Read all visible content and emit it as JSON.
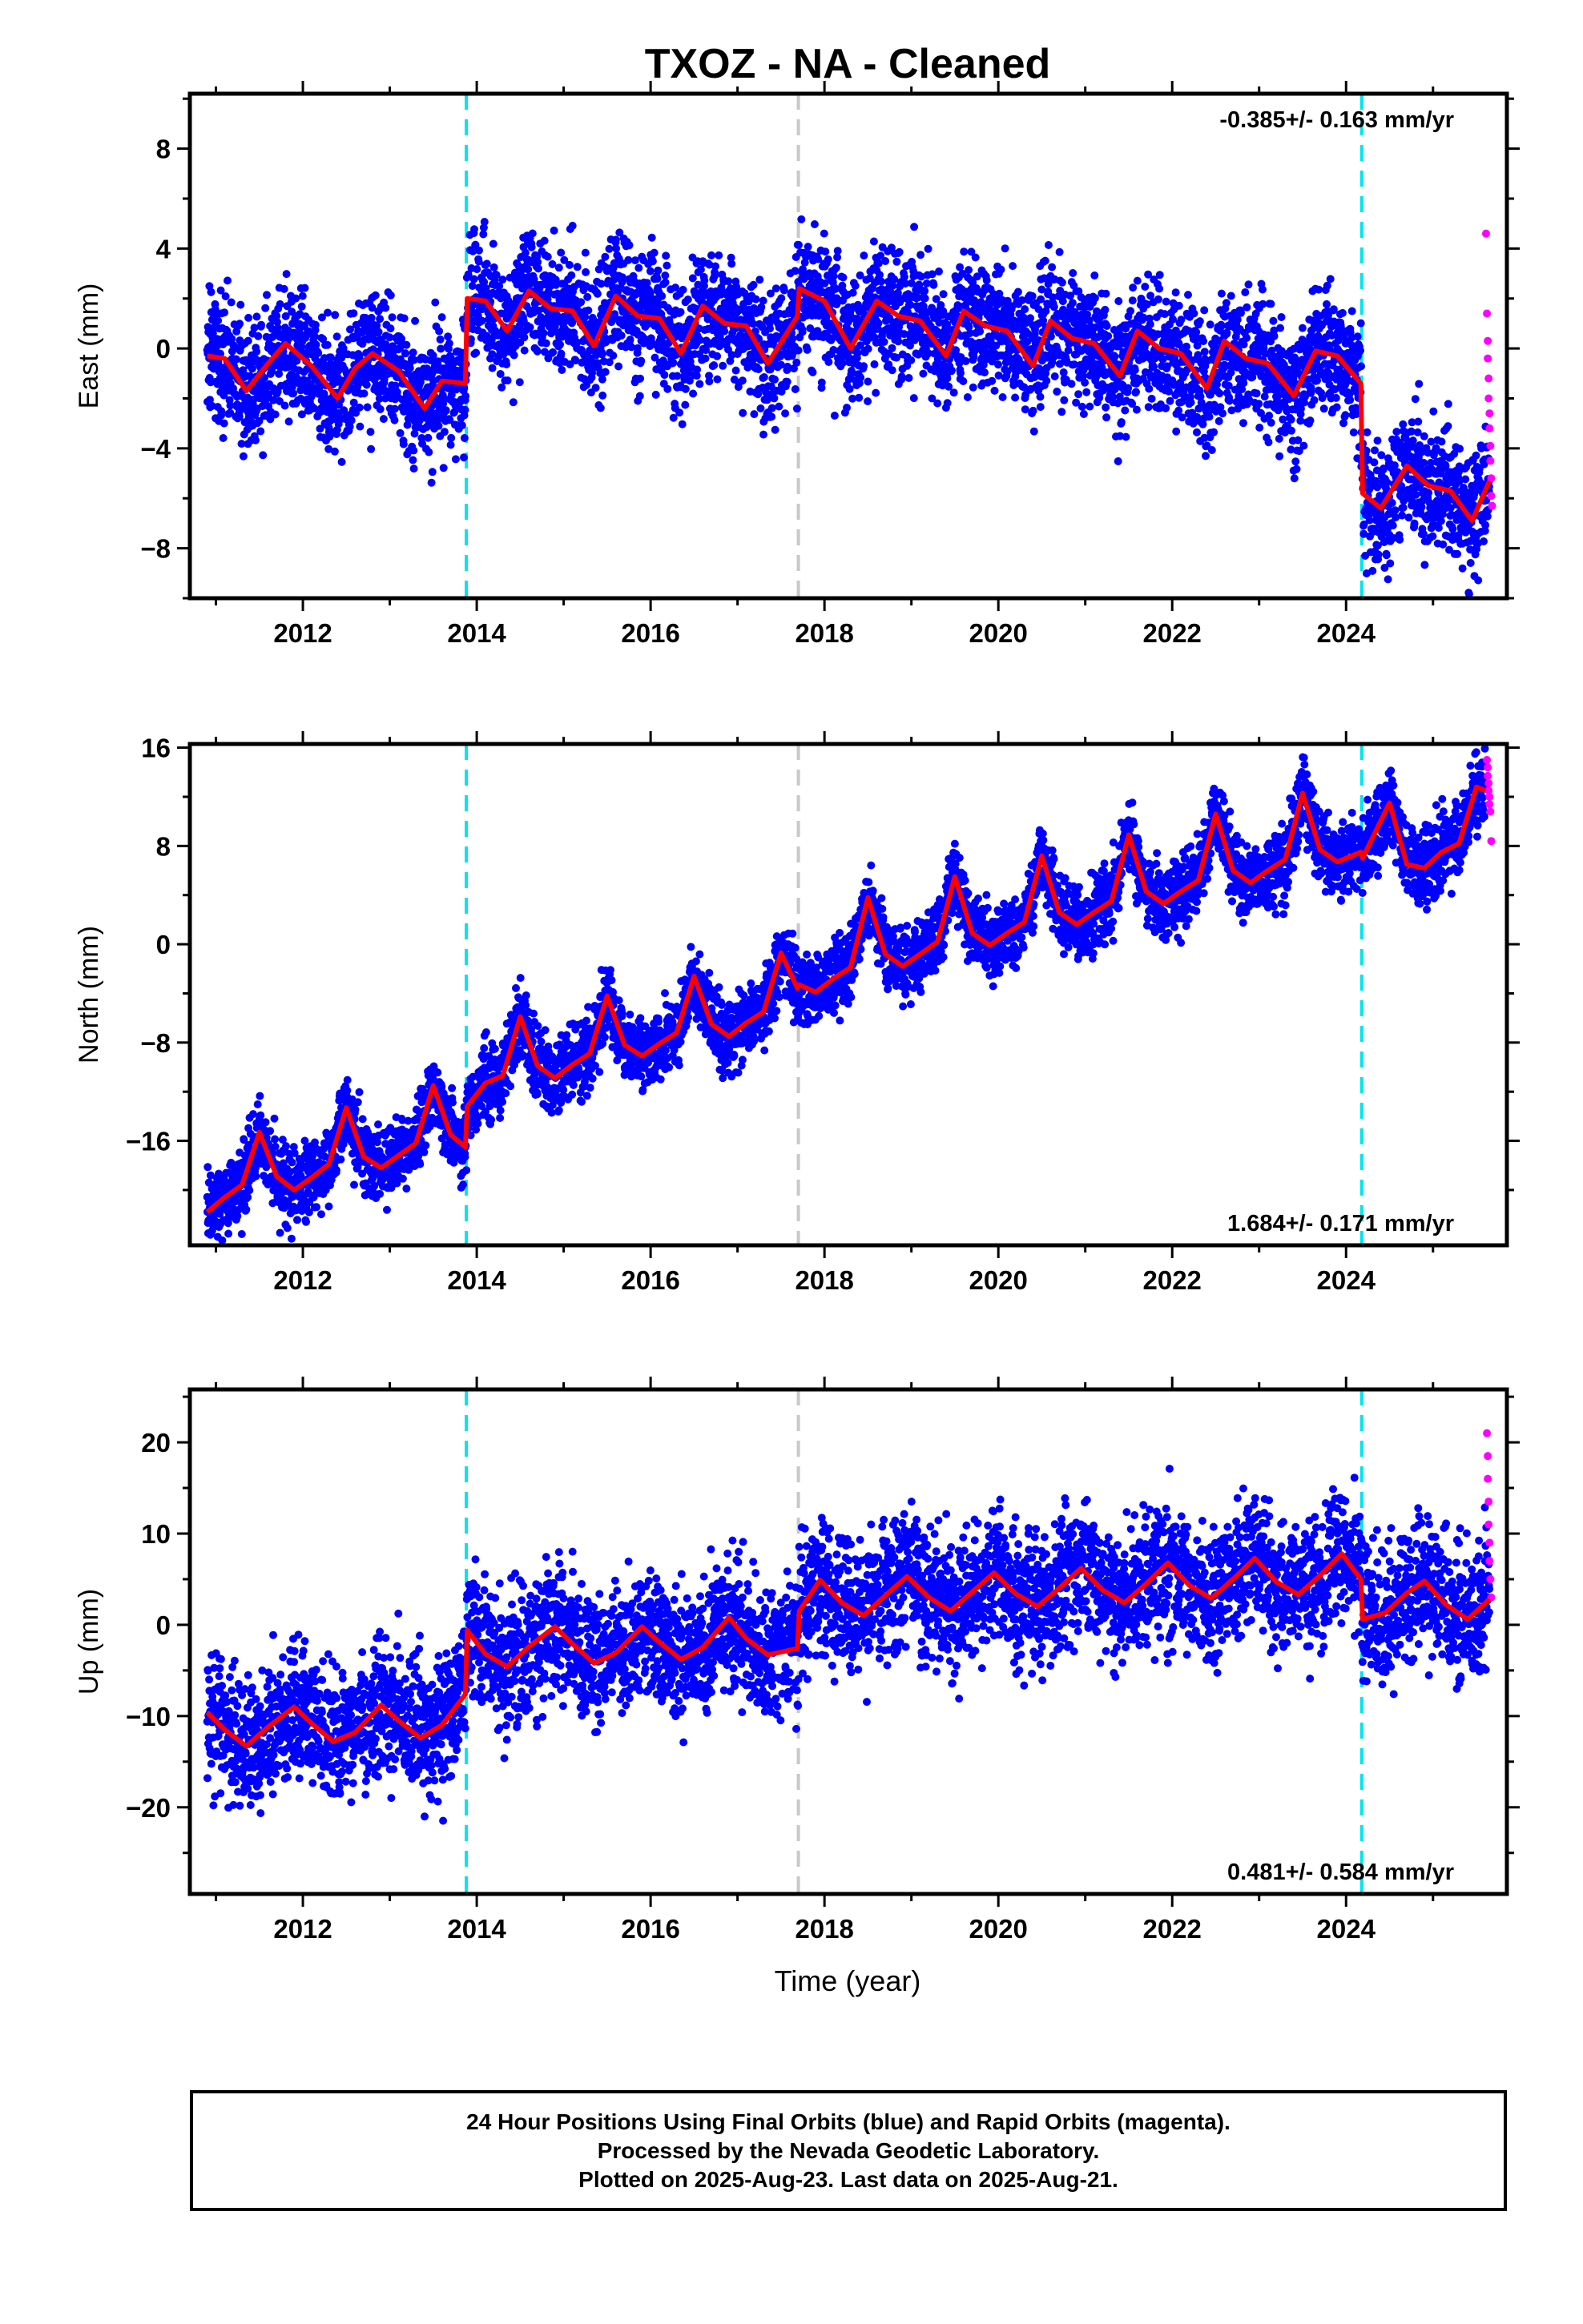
{
  "title": "TXOZ  - NA - Cleaned",
  "xlabel": "Time (year)",
  "footer": {
    "line1": "24 Hour Positions Using Final Orbits (blue) and Rapid Orbits (magenta).",
    "line2": "Processed by the Nevada Geodetic Laboratory.",
    "line3": "Plotted on 2025-Aug-23. Last data on 2025-Aug-21."
  },
  "colors": {
    "final_orbits": "#0000ff",
    "rapid_orbits": "#ff00ff",
    "model": "#ff0000",
    "antenna_change": "#00e5ee",
    "equipment_change": "#c8c8c8"
  },
  "chart_data": [
    {
      "type": "scatter",
      "component": "east",
      "ylabel": "East (mm)",
      "xlim": [
        2010.7,
        2025.85
      ],
      "ylim": [
        -10,
        10.2
      ],
      "xticks": [
        2012,
        2014,
        2016,
        2018,
        2020,
        2022,
        2024
      ],
      "yticks": [
        -8,
        -4,
        0,
        4,
        8
      ],
      "rate_label": "-0.385+/- 0.163 mm/yr",
      "rate_position": "top-right",
      "breaks_cyan": [
        2013.88,
        2024.18
      ],
      "breaks_gray": [
        2017.7
      ],
      "model": [
        [
          2010.9,
          -0.3
        ],
        [
          2011.1,
          -0.4
        ],
        [
          2011.35,
          -1.7
        ],
        [
          2011.6,
          -0.6
        ],
        [
          2011.8,
          0.2
        ],
        [
          2012.1,
          -0.7
        ],
        [
          2012.4,
          -2.0
        ],
        [
          2012.6,
          -0.8
        ],
        [
          2012.8,
          -0.2
        ],
        [
          2013.1,
          -0.9
        ],
        [
          2013.4,
          -2.4
        ],
        [
          2013.6,
          -1.3
        ],
        [
          2013.87,
          -1.4
        ],
        [
          2013.89,
          2.0
        ],
        [
          2014.1,
          1.9
        ],
        [
          2014.35,
          0.7
        ],
        [
          2014.6,
          2.3
        ],
        [
          2014.85,
          1.6
        ],
        [
          2015.1,
          1.5
        ],
        [
          2015.35,
          0.1
        ],
        [
          2015.6,
          2.1
        ],
        [
          2015.85,
          1.3
        ],
        [
          2016.1,
          1.2
        ],
        [
          2016.35,
          -0.2
        ],
        [
          2016.6,
          1.7
        ],
        [
          2016.85,
          1.0
        ],
        [
          2017.1,
          0.9
        ],
        [
          2017.35,
          -0.6
        ],
        [
          2017.69,
          1.3
        ],
        [
          2017.71,
          2.4
        ],
        [
          2018.0,
          1.9
        ],
        [
          2018.3,
          0.0
        ],
        [
          2018.6,
          1.9
        ],
        [
          2018.85,
          1.3
        ],
        [
          2019.1,
          1.1
        ],
        [
          2019.4,
          -0.3
        ],
        [
          2019.6,
          1.5
        ],
        [
          2019.85,
          0.9
        ],
        [
          2020.1,
          0.7
        ],
        [
          2020.4,
          -0.7
        ],
        [
          2020.6,
          1.1
        ],
        [
          2020.85,
          0.4
        ],
        [
          2021.1,
          0.2
        ],
        [
          2021.4,
          -1.1
        ],
        [
          2021.6,
          0.7
        ],
        [
          2021.85,
          0.0
        ],
        [
          2022.1,
          -0.2
        ],
        [
          2022.4,
          -1.6
        ],
        [
          2022.6,
          0.3
        ],
        [
          2022.85,
          -0.4
        ],
        [
          2023.1,
          -0.6
        ],
        [
          2023.4,
          -1.9
        ],
        [
          2023.65,
          -0.1
        ],
        [
          2023.9,
          -0.3
        ],
        [
          2024.17,
          -1.4
        ],
        [
          2024.19,
          -5.8
        ],
        [
          2024.4,
          -6.4
        ],
        [
          2024.7,
          -4.7
        ],
        [
          2024.95,
          -5.5
        ],
        [
          2025.2,
          -5.7
        ],
        [
          2025.45,
          -6.9
        ],
        [
          2025.65,
          -5.3
        ]
      ],
      "rapid": [
        [
          2025.61,
          4.6
        ],
        [
          2025.62,
          1.4
        ],
        [
          2025.63,
          0.3
        ],
        [
          2025.63,
          -0.4
        ],
        [
          2025.64,
          -1.2
        ],
        [
          2025.64,
          -2.0
        ],
        [
          2025.65,
          -2.6
        ],
        [
          2025.65,
          -3.2
        ],
        [
          2025.66,
          -3.9
        ],
        [
          2025.66,
          -4.5
        ],
        [
          2025.67,
          -5.2
        ],
        [
          2025.67,
          -5.9
        ],
        [
          2025.68,
          -6.3
        ]
      ]
    },
    {
      "type": "scatter",
      "component": "north",
      "ylabel": "North (mm)",
      "xlim": [
        2010.7,
        2025.85
      ],
      "ylim": [
        -24.5,
        16.3
      ],
      "xticks": [
        2012,
        2014,
        2016,
        2018,
        2020,
        2022,
        2024
      ],
      "yticks": [
        -16,
        -8,
        0,
        8,
        16
      ],
      "rate_label": "1.684+/- 0.171 mm/yr",
      "rate_position": "bottom-right",
      "breaks_cyan": [
        2013.88,
        2024.18
      ],
      "breaks_gray": [
        2017.7
      ],
      "model": [
        [
          2010.9,
          -21.8
        ],
        [
          2011.1,
          -20.6
        ],
        [
          2011.3,
          -19.6
        ],
        [
          2011.5,
          -15.3
        ],
        [
          2011.7,
          -18.9
        ],
        [
          2011.9,
          -20.0
        ],
        [
          2012.1,
          -19.0
        ],
        [
          2012.3,
          -17.9
        ],
        [
          2012.5,
          -13.3
        ],
        [
          2012.7,
          -17.3
        ],
        [
          2012.9,
          -18.2
        ],
        [
          2013.1,
          -17.2
        ],
        [
          2013.3,
          -16.2
        ],
        [
          2013.5,
          -11.5
        ],
        [
          2013.7,
          -15.5
        ],
        [
          2013.87,
          -16.5
        ],
        [
          2013.89,
          -13.2
        ],
        [
          2014.1,
          -11.3
        ],
        [
          2014.3,
          -10.7
        ],
        [
          2014.5,
          -5.9
        ],
        [
          2014.7,
          -9.9
        ],
        [
          2014.9,
          -10.9
        ],
        [
          2015.1,
          -9.8
        ],
        [
          2015.3,
          -8.9
        ],
        [
          2015.5,
          -4.2
        ],
        [
          2015.7,
          -8.2
        ],
        [
          2015.9,
          -9.1
        ],
        [
          2016.1,
          -8.1
        ],
        [
          2016.3,
          -7.2
        ],
        [
          2016.5,
          -2.6
        ],
        [
          2016.7,
          -6.5
        ],
        [
          2016.9,
          -7.5
        ],
        [
          2017.1,
          -6.4
        ],
        [
          2017.3,
          -5.5
        ],
        [
          2017.5,
          -0.7
        ],
        [
          2017.69,
          -3.6
        ],
        [
          2017.71,
          -3.3
        ],
        [
          2017.9,
          -3.9
        ],
        [
          2018.1,
          -2.8
        ],
        [
          2018.3,
          -1.9
        ],
        [
          2018.5,
          3.8
        ],
        [
          2018.7,
          -0.8
        ],
        [
          2018.9,
          -1.8
        ],
        [
          2019.1,
          -0.8
        ],
        [
          2019.3,
          0.2
        ],
        [
          2019.5,
          5.5
        ],
        [
          2019.7,
          0.9
        ],
        [
          2019.9,
          -0.1
        ],
        [
          2020.1,
          0.9
        ],
        [
          2020.3,
          1.8
        ],
        [
          2020.5,
          7.2
        ],
        [
          2020.7,
          2.6
        ],
        [
          2020.9,
          1.6
        ],
        [
          2021.1,
          2.6
        ],
        [
          2021.3,
          3.5
        ],
        [
          2021.5,
          8.9
        ],
        [
          2021.7,
          4.3
        ],
        [
          2021.9,
          3.3
        ],
        [
          2022.1,
          4.3
        ],
        [
          2022.3,
          5.2
        ],
        [
          2022.5,
          10.6
        ],
        [
          2022.7,
          6.0
        ],
        [
          2022.9,
          5.0
        ],
        [
          2023.1,
          6.0
        ],
        [
          2023.3,
          6.9
        ],
        [
          2023.5,
          12.3
        ],
        [
          2023.7,
          7.7
        ],
        [
          2023.9,
          6.7
        ],
        [
          2024.17,
          7.5
        ],
        [
          2024.19,
          7.0
        ],
        [
          2024.5,
          11.5
        ],
        [
          2024.7,
          6.5
        ],
        [
          2024.9,
          6.2
        ],
        [
          2025.1,
          7.5
        ],
        [
          2025.3,
          8.2
        ],
        [
          2025.5,
          12.8
        ],
        [
          2025.6,
          12.5
        ]
      ],
      "rapid": [
        [
          2025.62,
          15.0
        ],
        [
          2025.63,
          14.4
        ],
        [
          2025.63,
          13.7
        ],
        [
          2025.64,
          13.1
        ],
        [
          2025.64,
          12.5
        ],
        [
          2025.65,
          12.0
        ],
        [
          2025.65,
          11.4
        ],
        [
          2025.66,
          10.8
        ],
        [
          2025.67,
          8.4
        ]
      ]
    },
    {
      "type": "scatter",
      "component": "up",
      "ylabel": "Up (mm)",
      "xlim": [
        2010.7,
        2025.85
      ],
      "ylim": [
        -29.5,
        25.8
      ],
      "xticks": [
        2012,
        2014,
        2016,
        2018,
        2020,
        2022,
        2024
      ],
      "yticks": [
        -20,
        -10,
        0,
        10,
        20
      ],
      "rate_label": "0.481+/- 0.584 mm/yr",
      "rate_position": "bottom-right",
      "breaks_cyan": [
        2013.88,
        2024.18
      ],
      "breaks_gray": [
        2017.7
      ],
      "model": [
        [
          2010.9,
          -9.6
        ],
        [
          2011.1,
          -11.5
        ],
        [
          2011.35,
          -13.3
        ],
        [
          2011.6,
          -11.2
        ],
        [
          2011.9,
          -9.0
        ],
        [
          2012.1,
          -10.8
        ],
        [
          2012.35,
          -12.8
        ],
        [
          2012.6,
          -11.8
        ],
        [
          2012.9,
          -8.8
        ],
        [
          2013.1,
          -10.5
        ],
        [
          2013.35,
          -12.4
        ],
        [
          2013.6,
          -11.0
        ],
        [
          2013.87,
          -7.6
        ],
        [
          2013.89,
          -0.6
        ],
        [
          2014.1,
          -3.2
        ],
        [
          2014.35,
          -4.6
        ],
        [
          2014.6,
          -2.4
        ],
        [
          2014.9,
          -0.2
        ],
        [
          2015.1,
          -2.1
        ],
        [
          2015.35,
          -4.2
        ],
        [
          2015.6,
          -3.1
        ],
        [
          2015.9,
          -0.2
        ],
        [
          2016.1,
          -1.9
        ],
        [
          2016.35,
          -3.8
        ],
        [
          2016.6,
          -2.5
        ],
        [
          2016.9,
          0.8
        ],
        [
          2017.1,
          -1.5
        ],
        [
          2017.35,
          -3.3
        ],
        [
          2017.69,
          -2.6
        ],
        [
          2017.71,
          1.5
        ],
        [
          2017.95,
          4.9
        ],
        [
          2018.2,
          2.4
        ],
        [
          2018.45,
          1.0
        ],
        [
          2018.7,
          3.2
        ],
        [
          2018.95,
          5.3
        ],
        [
          2019.2,
          3.0
        ],
        [
          2019.45,
          1.5
        ],
        [
          2019.7,
          3.6
        ],
        [
          2019.95,
          5.7
        ],
        [
          2020.2,
          3.4
        ],
        [
          2020.45,
          2.0
        ],
        [
          2020.7,
          4.0
        ],
        [
          2020.95,
          6.2
        ],
        [
          2021.2,
          3.8
        ],
        [
          2021.45,
          2.4
        ],
        [
          2021.7,
          4.5
        ],
        [
          2021.95,
          6.8
        ],
        [
          2022.2,
          4.3
        ],
        [
          2022.45,
          2.9
        ],
        [
          2022.7,
          5.0
        ],
        [
          2022.95,
          7.3
        ],
        [
          2023.2,
          4.7
        ],
        [
          2023.45,
          3.3
        ],
        [
          2023.7,
          5.4
        ],
        [
          2023.95,
          7.8
        ],
        [
          2024.17,
          5.0
        ],
        [
          2024.19,
          0.6
        ],
        [
          2024.45,
          1.3
        ],
        [
          2024.7,
          3.5
        ],
        [
          2024.9,
          4.8
        ],
        [
          2025.15,
          2.2
        ],
        [
          2025.4,
          0.6
        ],
        [
          2025.65,
          2.8
        ]
      ],
      "rapid": [
        [
          2025.62,
          21.0
        ],
        [
          2025.63,
          18.5
        ],
        [
          2025.63,
          16.0
        ],
        [
          2025.64,
          13.5
        ],
        [
          2025.64,
          11.0
        ],
        [
          2025.65,
          9.0
        ],
        [
          2025.65,
          7.0
        ],
        [
          2025.66,
          5.0
        ],
        [
          2025.67,
          3.0
        ]
      ]
    }
  ]
}
